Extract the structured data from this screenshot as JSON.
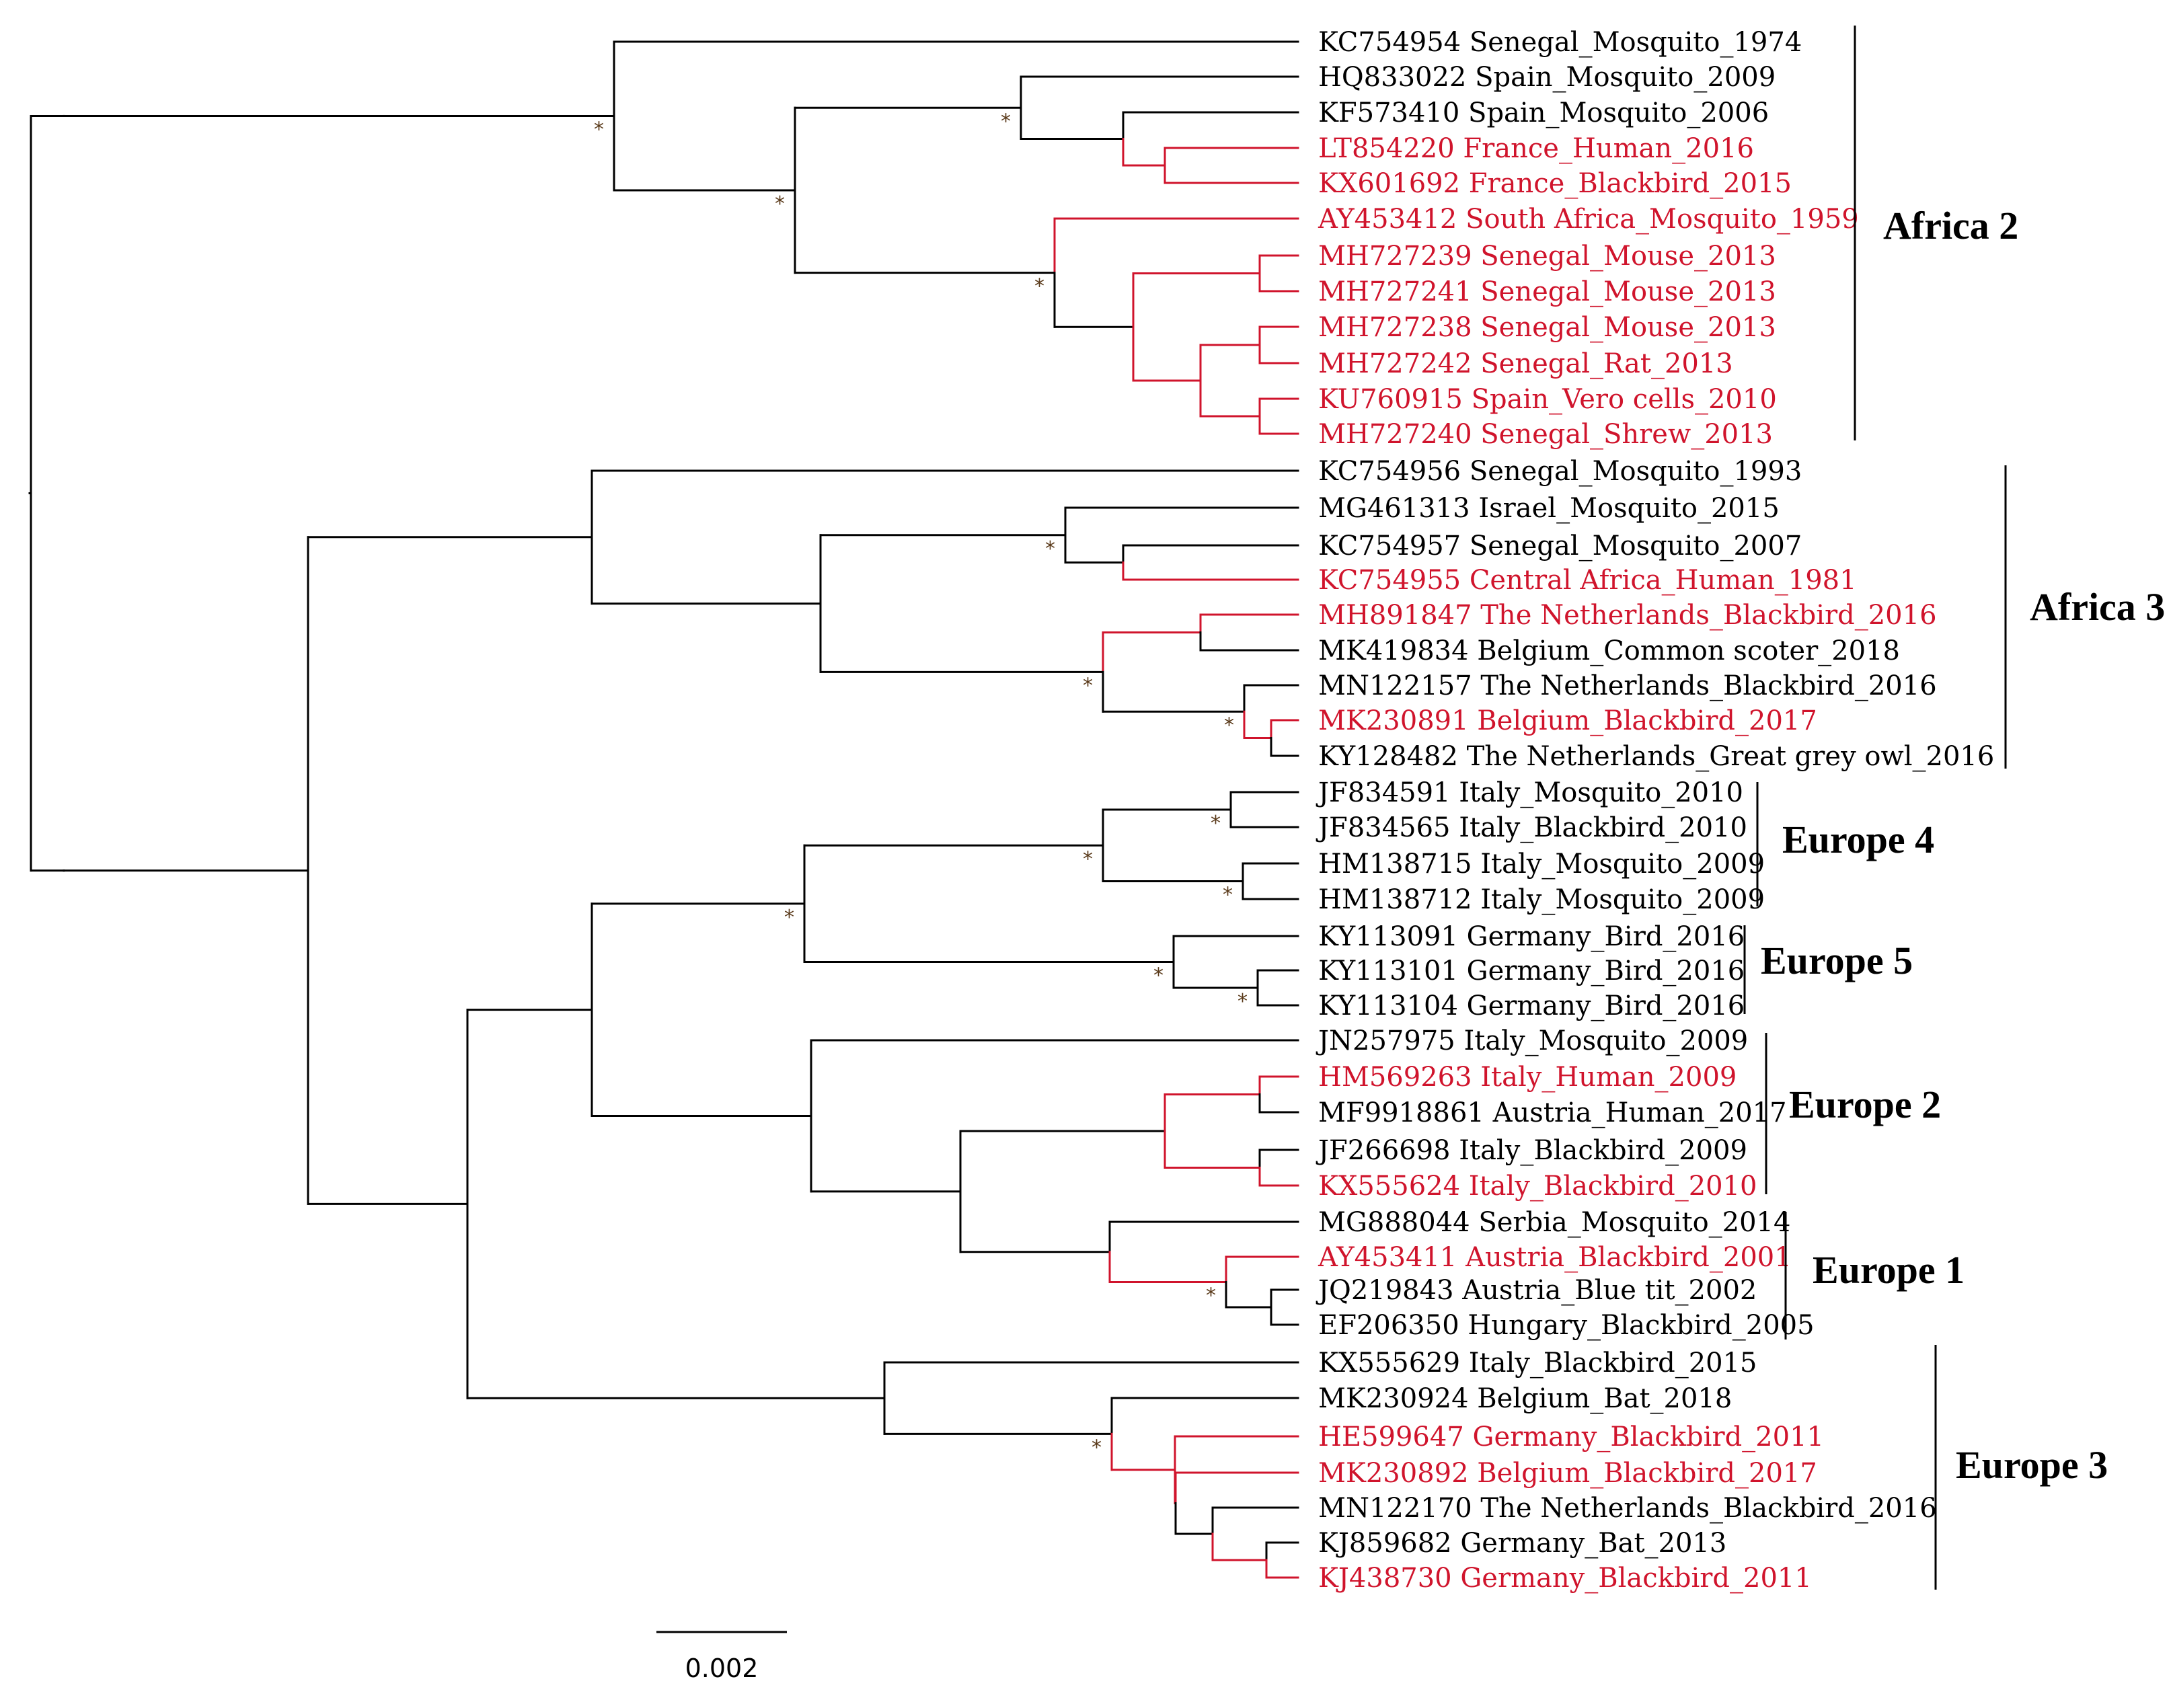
{
  "figure": {
    "colors": {
      "highlight": "#d0142c",
      "default": "#000000"
    },
    "support_marker": "*",
    "scale_bar_label": "0.002"
  },
  "taxa": [
    {
      "acc": "KC754954",
      "label": "Senegal_Mosquito_1974",
      "red": false
    },
    {
      "acc": "HQ833022",
      "label": "Spain_Mosquito_2009",
      "red": false
    },
    {
      "acc": "KF573410",
      "label": "Spain_Mosquito_2006",
      "red": false
    },
    {
      "acc": "LT854220",
      "label": "France_Human_2016",
      "red": true
    },
    {
      "acc": "KX601692",
      "label": "France_Blackbird_2015",
      "red": true
    },
    {
      "acc": "AY453412",
      "label": "South Africa_Mosquito_1959",
      "red": true
    },
    {
      "acc": "MH727239",
      "label": "Senegal_Mouse_2013",
      "red": true
    },
    {
      "acc": "MH727241",
      "label": "Senegal_Mouse_2013",
      "red": true
    },
    {
      "acc": "MH727238",
      "label": "Senegal_Mouse_2013",
      "red": true
    },
    {
      "acc": "MH727242",
      "label": "Senegal_Rat_2013",
      "red": true
    },
    {
      "acc": "KU760915",
      "label": "Spain_Vero cells_2010",
      "red": true
    },
    {
      "acc": "MH727240",
      "label": "Senegal_Shrew_2013",
      "red": true
    },
    {
      "acc": "KC754956",
      "label": "Senegal_Mosquito_1993",
      "red": false
    },
    {
      "acc": "MG461313",
      "label": "Israel_Mosquito_2015",
      "red": false
    },
    {
      "acc": "KC754957",
      "label": "Senegal_Mosquito_2007",
      "red": false
    },
    {
      "acc": "KC754955",
      "label": "Central Africa_Human_1981",
      "red": true
    },
    {
      "acc": "MH891847",
      "label": "The Netherlands_Blackbird_2016",
      "red": true
    },
    {
      "acc": "MK419834",
      "label": "Belgium_Common scoter_2018",
      "red": false
    },
    {
      "acc": "MN122157",
      "label": "The Netherlands_Blackbird_2016",
      "red": false
    },
    {
      "acc": "MK230891",
      "label": "Belgium_Blackbird_2017",
      "red": true
    },
    {
      "acc": "KY128482",
      "label": "The Netherlands_Great grey owl_2016",
      "red": false
    },
    {
      "acc": "JF834591",
      "label": "Italy_Mosquito_2010",
      "red": false
    },
    {
      "acc": "JF834565",
      "label": "Italy_Blackbird_2010",
      "red": false
    },
    {
      "acc": "HM138715",
      "label": "Italy_Mosquito_2009",
      "red": false
    },
    {
      "acc": "HM138712",
      "label": "Italy_Mosquito_2009",
      "red": false
    },
    {
      "acc": "KY113091",
      "label": "Germany_Bird_2016",
      "red": false
    },
    {
      "acc": "KY113101",
      "label": "Germany_Bird_2016",
      "red": false
    },
    {
      "acc": "KY113104",
      "label": "Germany_Bird_2016",
      "red": false
    },
    {
      "acc": "JN257975",
      "label": "Italy_Mosquito_2009",
      "red": false
    },
    {
      "acc": "HM569263",
      "label": "Italy_Human_2009",
      "red": true
    },
    {
      "acc": "MF9918861",
      "label": "Austria_Human_2017",
      "red": false
    },
    {
      "acc": "JF266698",
      "label": "Italy_Blackbird_2009",
      "red": false
    },
    {
      "acc": "KX555624",
      "label": "Italy_Blackbird_2010",
      "red": true
    },
    {
      "acc": "MG888044",
      "label": "Serbia_Mosquito_2014",
      "red": false
    },
    {
      "acc": "AY453411",
      "label": "Austria_Blackbird_2001",
      "red": true
    },
    {
      "acc": "JQ219843",
      "label": "Austria_Blue tit_2002",
      "red": false
    },
    {
      "acc": "EF206350",
      "label": "Hungary_Blackbird_2005",
      "red": false
    },
    {
      "acc": "KX555629",
      "label": "Italy_Blackbird_2015",
      "red": false
    },
    {
      "acc": "MK230924",
      "label": "Belgium_Bat_2018",
      "red": false
    },
    {
      "acc": "HE599647",
      "label": "Germany_Blackbird_2011",
      "red": true
    },
    {
      "acc": "MK230892",
      "label": "Belgium_Blackbird_2017",
      "red": true
    },
    {
      "acc": "MN122170",
      "label": "The Netherlands_Blackbird_2016",
      "red": false
    },
    {
      "acc": "KJ859682",
      "label": "Germany_Bat_2013",
      "red": false
    },
    {
      "acc": "KJ438730",
      "label": "Germany_Blackbird_2011",
      "red": true
    }
  ],
  "clades": [
    {
      "name": "Africa 2",
      "first": 0,
      "last": 11
    },
    {
      "name": "Africa 3",
      "first": 12,
      "last": 20
    },
    {
      "name": "Europe 4",
      "first": 21,
      "last": 24
    },
    {
      "name": "Europe 5",
      "first": 25,
      "last": 27
    },
    {
      "name": "Europe 2",
      "first": 28,
      "last": 32
    },
    {
      "name": "Europe 1",
      "first": 33,
      "last": 36
    },
    {
      "name": "Europe 3",
      "first": 37,
      "last": 43
    }
  ]
}
